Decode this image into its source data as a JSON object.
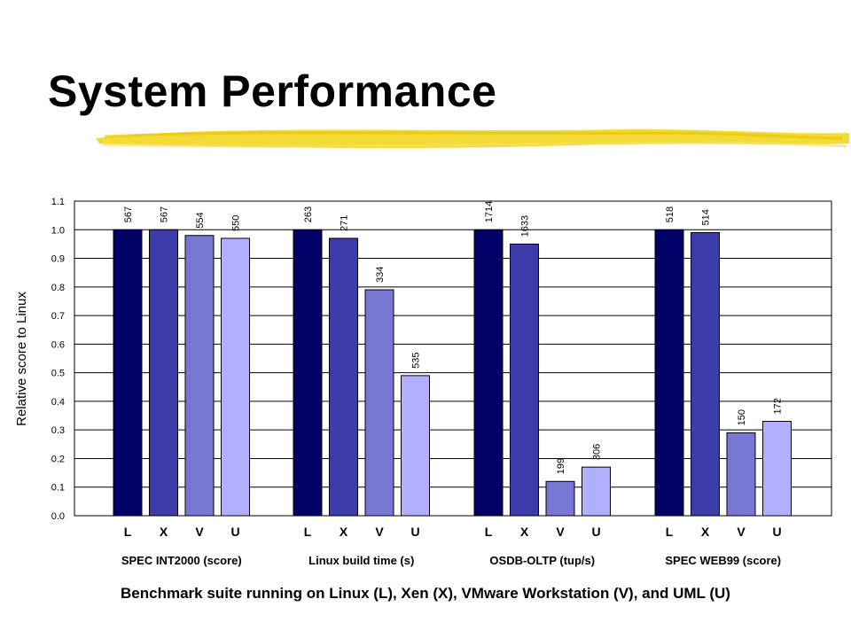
{
  "slide": {
    "title": "System Performance",
    "highlight_color": "#f2d313"
  },
  "caption": "Benchmark suite running on Linux (L), Xen (X), VMware Workstation (V), and UML (U)",
  "chart_data": {
    "type": "bar",
    "ylabel": "Relative score to Linux",
    "ylim": [
      0.0,
      1.1
    ],
    "yticks": [
      "0.0",
      "0.1",
      "0.2",
      "0.3",
      "0.4",
      "0.5",
      "0.6",
      "0.7",
      "0.8",
      "0.9",
      "1.0",
      "1.1"
    ],
    "grid": true,
    "bar_labels": [
      "L",
      "X",
      "V",
      "U"
    ],
    "colors": [
      "#000066",
      "#3c3caa",
      "#7878d4",
      "#b0b0ff"
    ],
    "groups": [
      {
        "name": "SPEC INT2000 (score)",
        "values": [
          1.0,
          1.0,
          0.98,
          0.97
        ],
        "labels": [
          "567",
          "567",
          "554",
          "550"
        ]
      },
      {
        "name": "Linux build time (s)",
        "values": [
          1.0,
          0.97,
          0.79,
          0.49
        ],
        "labels": [
          "263",
          "271",
          "334",
          "535"
        ]
      },
      {
        "name": "OSDB-OLTP (tup/s)",
        "values": [
          1.0,
          0.95,
          0.12,
          0.17
        ],
        "labels": [
          "1714",
          "1633",
          "199",
          "306"
        ]
      },
      {
        "name": "SPEC WEB99 (score)",
        "values": [
          1.0,
          0.99,
          0.29,
          0.33
        ],
        "labels": [
          "518",
          "514",
          "150",
          "172"
        ]
      }
    ]
  }
}
